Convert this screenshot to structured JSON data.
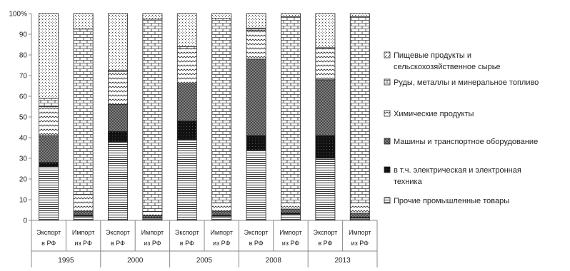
{
  "chart_data": {
    "type": "bar",
    "stacked": true,
    "ylim": [
      0,
      100
    ],
    "yticks": [
      "0",
      "10",
      "20",
      "30",
      "40",
      "50",
      "60",
      "70",
      "80",
      "90",
      "100%"
    ],
    "grid": false,
    "legend_position": "right",
    "groups": [
      "1995",
      "2000",
      "2005",
      "2008",
      "2013"
    ],
    "categories": [
      {
        "line1": "Экспорт",
        "line2": "в РФ"
      },
      {
        "line1": "Импорт",
        "line2": "из РФ"
      },
      {
        "line1": "Экспорт",
        "line2": "в РФ"
      },
      {
        "line1": "Импорт",
        "line2": "из РФ"
      },
      {
        "line1": "Экспорт",
        "line2": "в РФ"
      },
      {
        "line1": "Импорт",
        "line2": "из РФ"
      },
      {
        "line1": "Экспорт",
        "line2": "в РФ"
      },
      {
        "line1": "Импорт",
        "line2": "из РФ"
      },
      {
        "line1": "Экспорт",
        "line2": "в РФ"
      },
      {
        "line1": "Импорт",
        "line2": "из РФ"
      }
    ],
    "series": [
      {
        "name": "Прочие промышленные товары",
        "pattern": "hlines",
        "values": [
          26,
          2,
          38,
          1,
          39,
          2,
          34,
          3,
          30,
          1
        ]
      },
      {
        "name": "в т.ч. электрическая и электронная техника",
        "pattern": "solid",
        "values": [
          2,
          0.5,
          5,
          0.3,
          9,
          0.5,
          7,
          0.5,
          11,
          0.5
        ]
      },
      {
        "name": "Машины и транспортное оборудование",
        "pattern": "crosshatch",
        "values": [
          13,
          2,
          13,
          1,
          18,
          2,
          37,
          2,
          27,
          2
        ]
      },
      {
        "name": "Химические продукты",
        "pattern": "wave",
        "values": [
          14,
          8,
          16,
          2,
          17,
          4,
          14,
          3,
          15,
          5
        ]
      },
      {
        "name": "Руды, металлы и минеральное топливо",
        "pattern": "brick",
        "values": [
          4,
          80,
          0.5,
          93,
          1,
          89,
          1,
          90,
          0.5,
          90
        ]
      },
      {
        "name": "Пищевые продукты и сельскохозяйственное сырье",
        "pattern": "dots",
        "values": [
          41,
          7.5,
          27.5,
          2.7,
          16,
          2.5,
          7,
          1.5,
          16.5,
          1.5
        ]
      }
    ],
    "legend": [
      {
        "line1": "Пищевые продукты и",
        "line2": "сельскохозяйственное сырье",
        "pattern": "dots"
      },
      {
        "line1": "Руды, металлы и минеральное топливо",
        "line2": "",
        "pattern": "brick"
      },
      {
        "line1": "Химические продукты",
        "line2": "",
        "pattern": "wave"
      },
      {
        "line1": "Машины и транспортное оборудование",
        "line2": "",
        "pattern": "crosshatch"
      },
      {
        "line1": "в т.ч. электрическая и электронная",
        "line2": "техника",
        "pattern": "solid"
      },
      {
        "line1": "Прочие промышленные товары",
        "line2": "",
        "pattern": "hlines"
      }
    ]
  }
}
